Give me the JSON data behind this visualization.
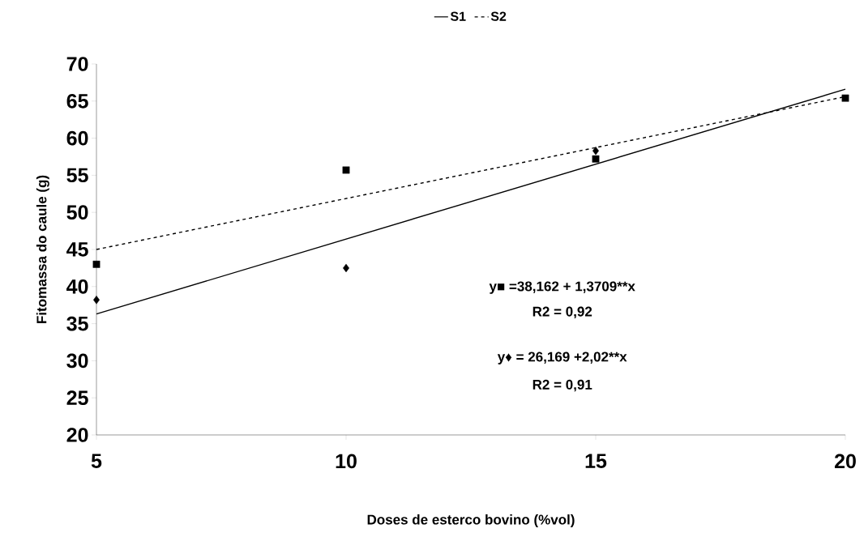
{
  "chart_data": {
    "type": "scatter",
    "xlabel": "Doses de esterco bovino (%vol)",
    "ylabel": "Fitomassa do caule (g)",
    "xlim": [
      5,
      20
    ],
    "xticks": [
      5,
      10,
      15,
      20
    ],
    "ylim": [
      20,
      70
    ],
    "yticks": [
      20,
      25,
      30,
      35,
      40,
      45,
      50,
      55,
      60,
      65,
      70
    ],
    "grid": false,
    "legend": "top",
    "series": [
      {
        "name": "S1",
        "type": "line",
        "color": "#000000",
        "line_style": "solid",
        "marker": "none",
        "x": [
          5,
          20
        ],
        "values": [
          36.3,
          66.6
        ]
      },
      {
        "name": "S2",
        "type": "line",
        "color": "#000000",
        "line_style": "dashed",
        "marker": "none",
        "x": [
          5,
          20
        ],
        "values": [
          45.0,
          65.6
        ]
      },
      {
        "color": "#000000",
        "marker": "diamond",
        "x": [
          5,
          10,
          15
        ],
        "values": [
          38.2,
          42.5,
          58.3
        ]
      },
      {
        "color": "#000000",
        "marker": "square",
        "x": [
          5,
          10,
          15,
          20
        ],
        "values": [
          43.0,
          55.7,
          57.2,
          65.4
        ]
      }
    ],
    "annotations": [
      "y■ =38,162 + 1,3709**x",
      "R2 = 0,92",
      "y♦ = 26,169 +2,02**x",
      "R2 = 0,91"
    ]
  }
}
